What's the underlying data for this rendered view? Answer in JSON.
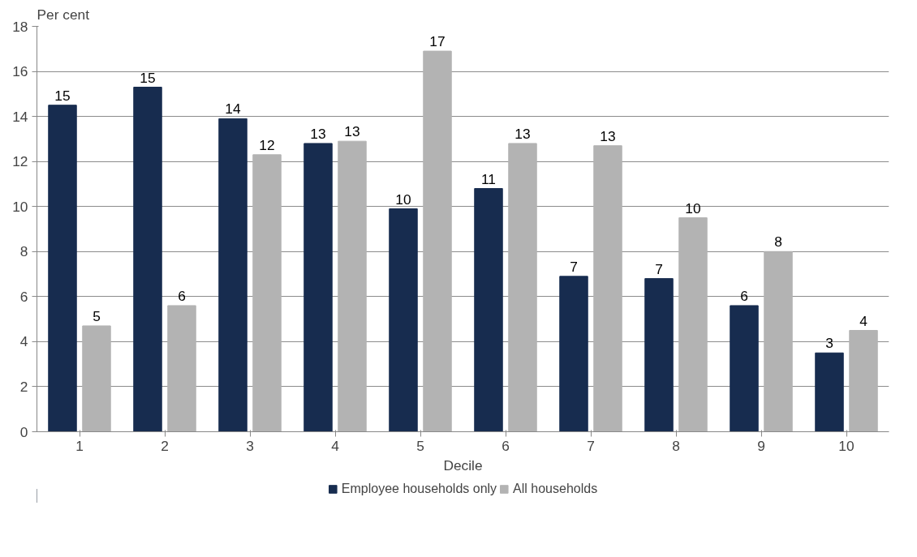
{
  "chart_data": {
    "type": "bar",
    "ylabel": "Per cent",
    "xlabel": "Decile",
    "categories": [
      "1",
      "2",
      "3",
      "4",
      "5",
      "6",
      "7",
      "8",
      "9",
      "10"
    ],
    "series": [
      {
        "name": "Employee households only",
        "color": "#172c4f",
        "values": [
          14.5,
          15.3,
          13.9,
          12.8,
          9.9,
          10.8,
          6.9,
          6.8,
          5.6,
          3.5
        ],
        "value_labels": [
          "15",
          "15",
          "14",
          "13",
          "10",
          "11",
          "7",
          "7",
          "6",
          "3"
        ]
      },
      {
        "name": "All households",
        "color": "#b3b3b3",
        "values": [
          4.7,
          5.6,
          12.3,
          12.9,
          16.9,
          12.8,
          12.7,
          9.5,
          8.0,
          4.5
        ],
        "value_labels": [
          "5",
          "6",
          "12",
          "13",
          "17",
          "13",
          "13",
          "10",
          "8",
          "4"
        ]
      }
    ],
    "ylim": [
      0,
      18
    ],
    "yticks": [
      0,
      2,
      4,
      6,
      8,
      10,
      12,
      14,
      16,
      18
    ],
    "grid": "y",
    "legend": "bottom"
  }
}
